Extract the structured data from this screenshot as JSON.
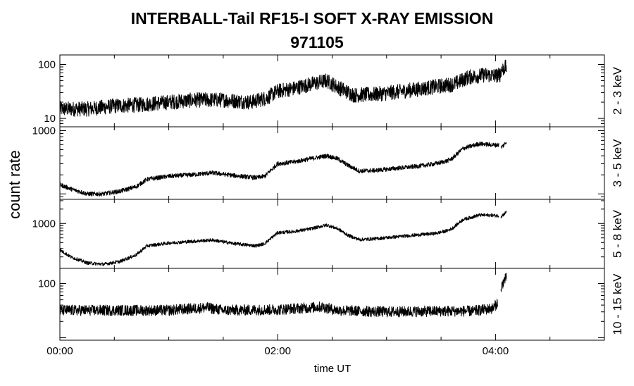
{
  "chart_data": {
    "type": "line",
    "title": "INTERBALL-Tail RF15-I SOFT X-RAY EMISSION",
    "subtitle": "971105",
    "xlabel": "time UT",
    "ylabel": "count rate",
    "x_unit": "hours UT",
    "xlim": [
      0,
      5
    ],
    "x_ticks": [
      0,
      2,
      4
    ],
    "x_tick_labels": [
      "00:00",
      "02:00",
      "04:00"
    ],
    "x_minor_step": 0.5,
    "y_scale": "log",
    "grid": false,
    "panels": [
      {
        "band": "2 - 3 keV",
        "ylim": [
          7,
          150
        ],
        "y_ticks": [
          10,
          100
        ],
        "y_tick_labels": [
          "10",
          "100"
        ],
        "noise": 0.14,
        "series": [
          {
            "x": [
              0,
              0.25,
              0.5,
              0.75,
              1.0,
              1.25,
              1.5,
              1.75,
              1.9,
              2.0,
              2.15,
              2.3,
              2.45,
              2.55,
              2.7,
              2.9,
              3.1,
              3.3,
              3.5,
              3.62,
              3.75,
              3.9,
              4.0,
              4.05
            ],
            "y": [
              15,
              15,
              17,
              18,
              20,
              22,
              22,
              20,
              24,
              32,
              36,
              43,
              50,
              38,
              27,
              28,
              31,
              35,
              40,
              43,
              58,
              64,
              62,
              65
            ]
          },
          {
            "x": [
              4.03,
              4.06,
              4.08,
              4.1
            ],
            "y": [
              70,
              80,
              86,
              90
            ]
          }
        ]
      },
      {
        "band": "3 - 5 keV",
        "ylim": [
          82,
          1150
        ],
        "y_ticks": [
          1000
        ],
        "y_tick_labels": [
          "1000"
        ],
        "noise": 0.035,
        "series": [
          {
            "x": [
              0,
              0.1,
              0.25,
              0.4,
              0.55,
              0.7,
              0.8,
              1.0,
              1.2,
              1.4,
              1.6,
              1.8,
              1.88,
              2.0,
              2.15,
              2.3,
              2.45,
              2.55,
              2.65,
              2.75,
              2.9,
              3.1,
              3.3,
              3.45,
              3.55,
              3.6,
              3.7,
              3.85,
              4.0,
              4.03
            ],
            "y": [
              140,
              120,
              100,
              100,
              110,
              130,
              170,
              190,
              200,
              215,
              195,
              180,
              190,
              300,
              320,
              360,
              400,
              360,
              280,
              230,
              235,
              255,
              275,
              300,
              330,
              360,
              520,
              620,
              590,
              600
            ]
          },
          {
            "x": [
              4.05,
              4.07,
              4.09,
              4.1
            ],
            "y": [
              540,
              580,
              630,
              660
            ]
          }
        ]
      },
      {
        "band": "5 - 8 keV",
        "ylim": [
          115,
          3200
        ],
        "y_ticks": [
          1000
        ],
        "y_tick_labels": [
          "1000"
        ],
        "noise": 0.035,
        "series": [
          {
            "x": [
              0,
              0.1,
              0.25,
              0.4,
              0.55,
              0.7,
              0.8,
              1.0,
              1.2,
              1.4,
              1.6,
              1.8,
              1.88,
              2.0,
              2.15,
              2.3,
              2.45,
              2.55,
              2.65,
              2.75,
              2.9,
              3.1,
              3.3,
              3.45,
              3.55,
              3.6,
              3.7,
              3.85,
              3.98,
              4.03
            ],
            "y": [
              280,
              200,
              150,
              140,
              160,
              220,
              340,
              390,
              420,
              450,
              380,
              340,
              380,
              640,
              680,
              770,
              930,
              780,
              560,
              460,
              480,
              530,
              580,
              620,
              700,
              780,
              1200,
              1500,
              1480,
              1450
            ]
          },
          {
            "x": [
              4.05,
              4.07,
              4.09,
              4.1
            ],
            "y": [
              1400,
              1520,
              1650,
              1780
            ]
          }
        ]
      },
      {
        "band": "10 - 15 keV",
        "ylim": [
          9,
          190
        ],
        "y_ticks": [
          100
        ],
        "y_tick_labels": [
          "100"
        ],
        "noise": 0.1,
        "series": [
          {
            "x": [
              0,
              1.0,
              1.35,
              1.5,
              2.0,
              2.4,
              2.55,
              3.0,
              3.5,
              3.8,
              3.98,
              4.0,
              4.02
            ],
            "y": [
              32,
              32,
              36,
              32,
              33,
              37,
              32,
              30,
              31,
              31,
              35,
              40,
              45
            ]
          },
          {
            "x": [
              4.05,
              4.06,
              4.08,
              4.1
            ],
            "y": [
              70,
              95,
              115,
              125
            ]
          }
        ]
      }
    ]
  }
}
